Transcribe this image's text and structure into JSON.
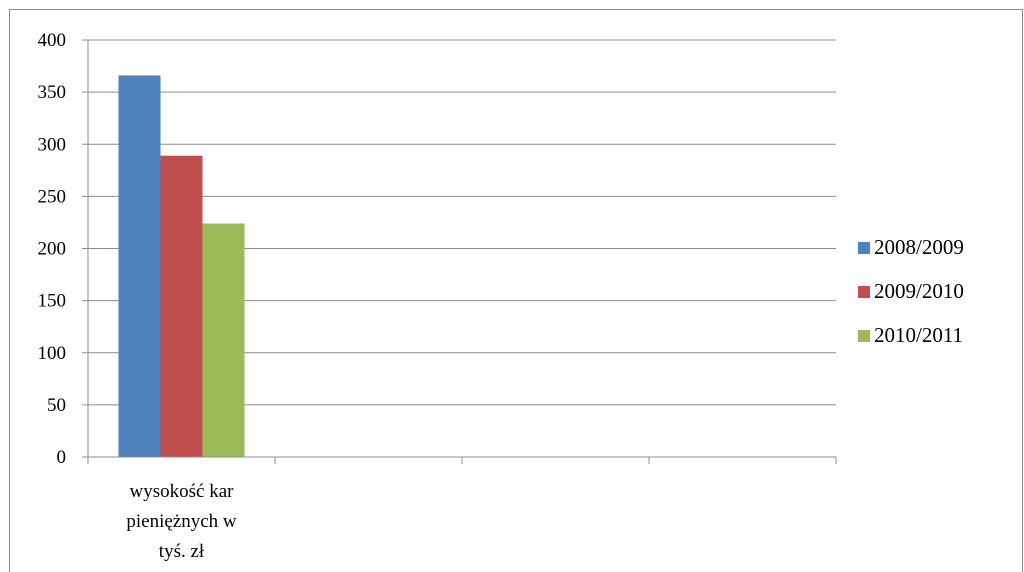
{
  "chart_data": {
    "type": "bar",
    "categories": [
      "wysokość kar pieniężnych w tyś. zł",
      "",
      "",
      ""
    ],
    "category_lines": [
      [
        "wysokość kar",
        "pieniężnych w",
        "tyś. zł"
      ],
      [],
      [],
      []
    ],
    "series": [
      {
        "name": "2008/2009",
        "color": "#4f81bd",
        "values": [
          366,
          null,
          null,
          null
        ]
      },
      {
        "name": "2009/2010",
        "color": "#c0504d",
        "values": [
          289,
          null,
          null,
          null
        ]
      },
      {
        "name": "2010/2011",
        "color": "#9bbb59",
        "values": [
          224,
          null,
          null,
          null
        ]
      }
    ],
    "ylim": [
      0,
      400
    ],
    "yticks": [
      "0",
      "50",
      "100",
      "150",
      "200",
      "250",
      "300",
      "350",
      "400"
    ],
    "ytick_values": [
      0,
      50,
      100,
      150,
      200,
      250,
      300,
      350,
      400
    ],
    "grid": true,
    "legend_position": "right"
  }
}
